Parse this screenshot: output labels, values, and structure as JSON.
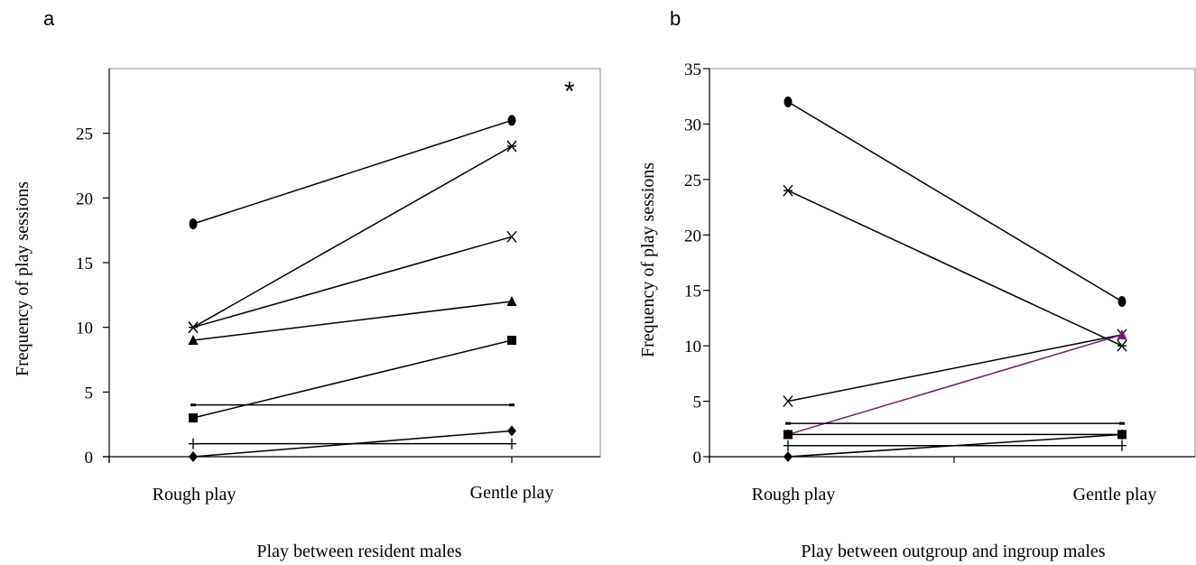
{
  "chart_data": [
    {
      "type": "line",
      "panel": "a",
      "categories": [
        "Rough play",
        "Gentle play"
      ],
      "xlabel": "Play between resident males",
      "ylabel": "Frequency of play sessions",
      "ylim": [
        0,
        30
      ],
      "yticks": [
        "0",
        "5",
        "10",
        "15",
        "20",
        "25"
      ],
      "annotation": "*",
      "grid": false,
      "series": [
        {
          "marker": "circle",
          "values": [
            18,
            26
          ],
          "color": "#000000"
        },
        {
          "marker": "star",
          "values": [
            10,
            24
          ],
          "color": "#000000"
        },
        {
          "marker": "x",
          "values": [
            10,
            17
          ],
          "color": "#000000"
        },
        {
          "marker": "triangle",
          "values": [
            9,
            12
          ],
          "color": "#000000"
        },
        {
          "marker": "square",
          "values": [
            3,
            9
          ],
          "color": "#000000"
        },
        {
          "marker": "dash",
          "values": [
            4,
            4
          ],
          "color": "#000000"
        },
        {
          "marker": "diamond",
          "values": [
            0,
            2
          ],
          "color": "#000000"
        },
        {
          "marker": "plus",
          "values": [
            1,
            1
          ],
          "color": "#000000"
        }
      ]
    },
    {
      "type": "line",
      "panel": "b",
      "categories": [
        "Rough play",
        "Gentle play"
      ],
      "xlabel": "Play between outgroup and ingroup males",
      "ylabel": "Frequency of play sessions",
      "ylim": [
        0,
        35
      ],
      "yticks": [
        "0",
        "5",
        "10",
        "15",
        "20",
        "25",
        "30",
        "35"
      ],
      "grid": false,
      "series": [
        {
          "marker": "circle",
          "values": [
            32,
            14
          ],
          "color": "#000000"
        },
        {
          "marker": "star",
          "values": [
            24,
            10
          ],
          "color": "#000000"
        },
        {
          "marker": "x",
          "values": [
            5,
            11
          ],
          "color": "#000000"
        },
        {
          "marker": "triangle",
          "values": [
            2,
            11
          ],
          "color": "#6b1f6b"
        },
        {
          "marker": "square",
          "values": [
            2,
            2
          ],
          "color": "#000000"
        },
        {
          "marker": "dash",
          "values": [
            3,
            3
          ],
          "color": "#000000"
        },
        {
          "marker": "diamond",
          "values": [
            0,
            2
          ],
          "color": "#000000"
        },
        {
          "marker": "plus",
          "values": [
            1,
            1
          ],
          "color": "#000000"
        }
      ]
    }
  ]
}
